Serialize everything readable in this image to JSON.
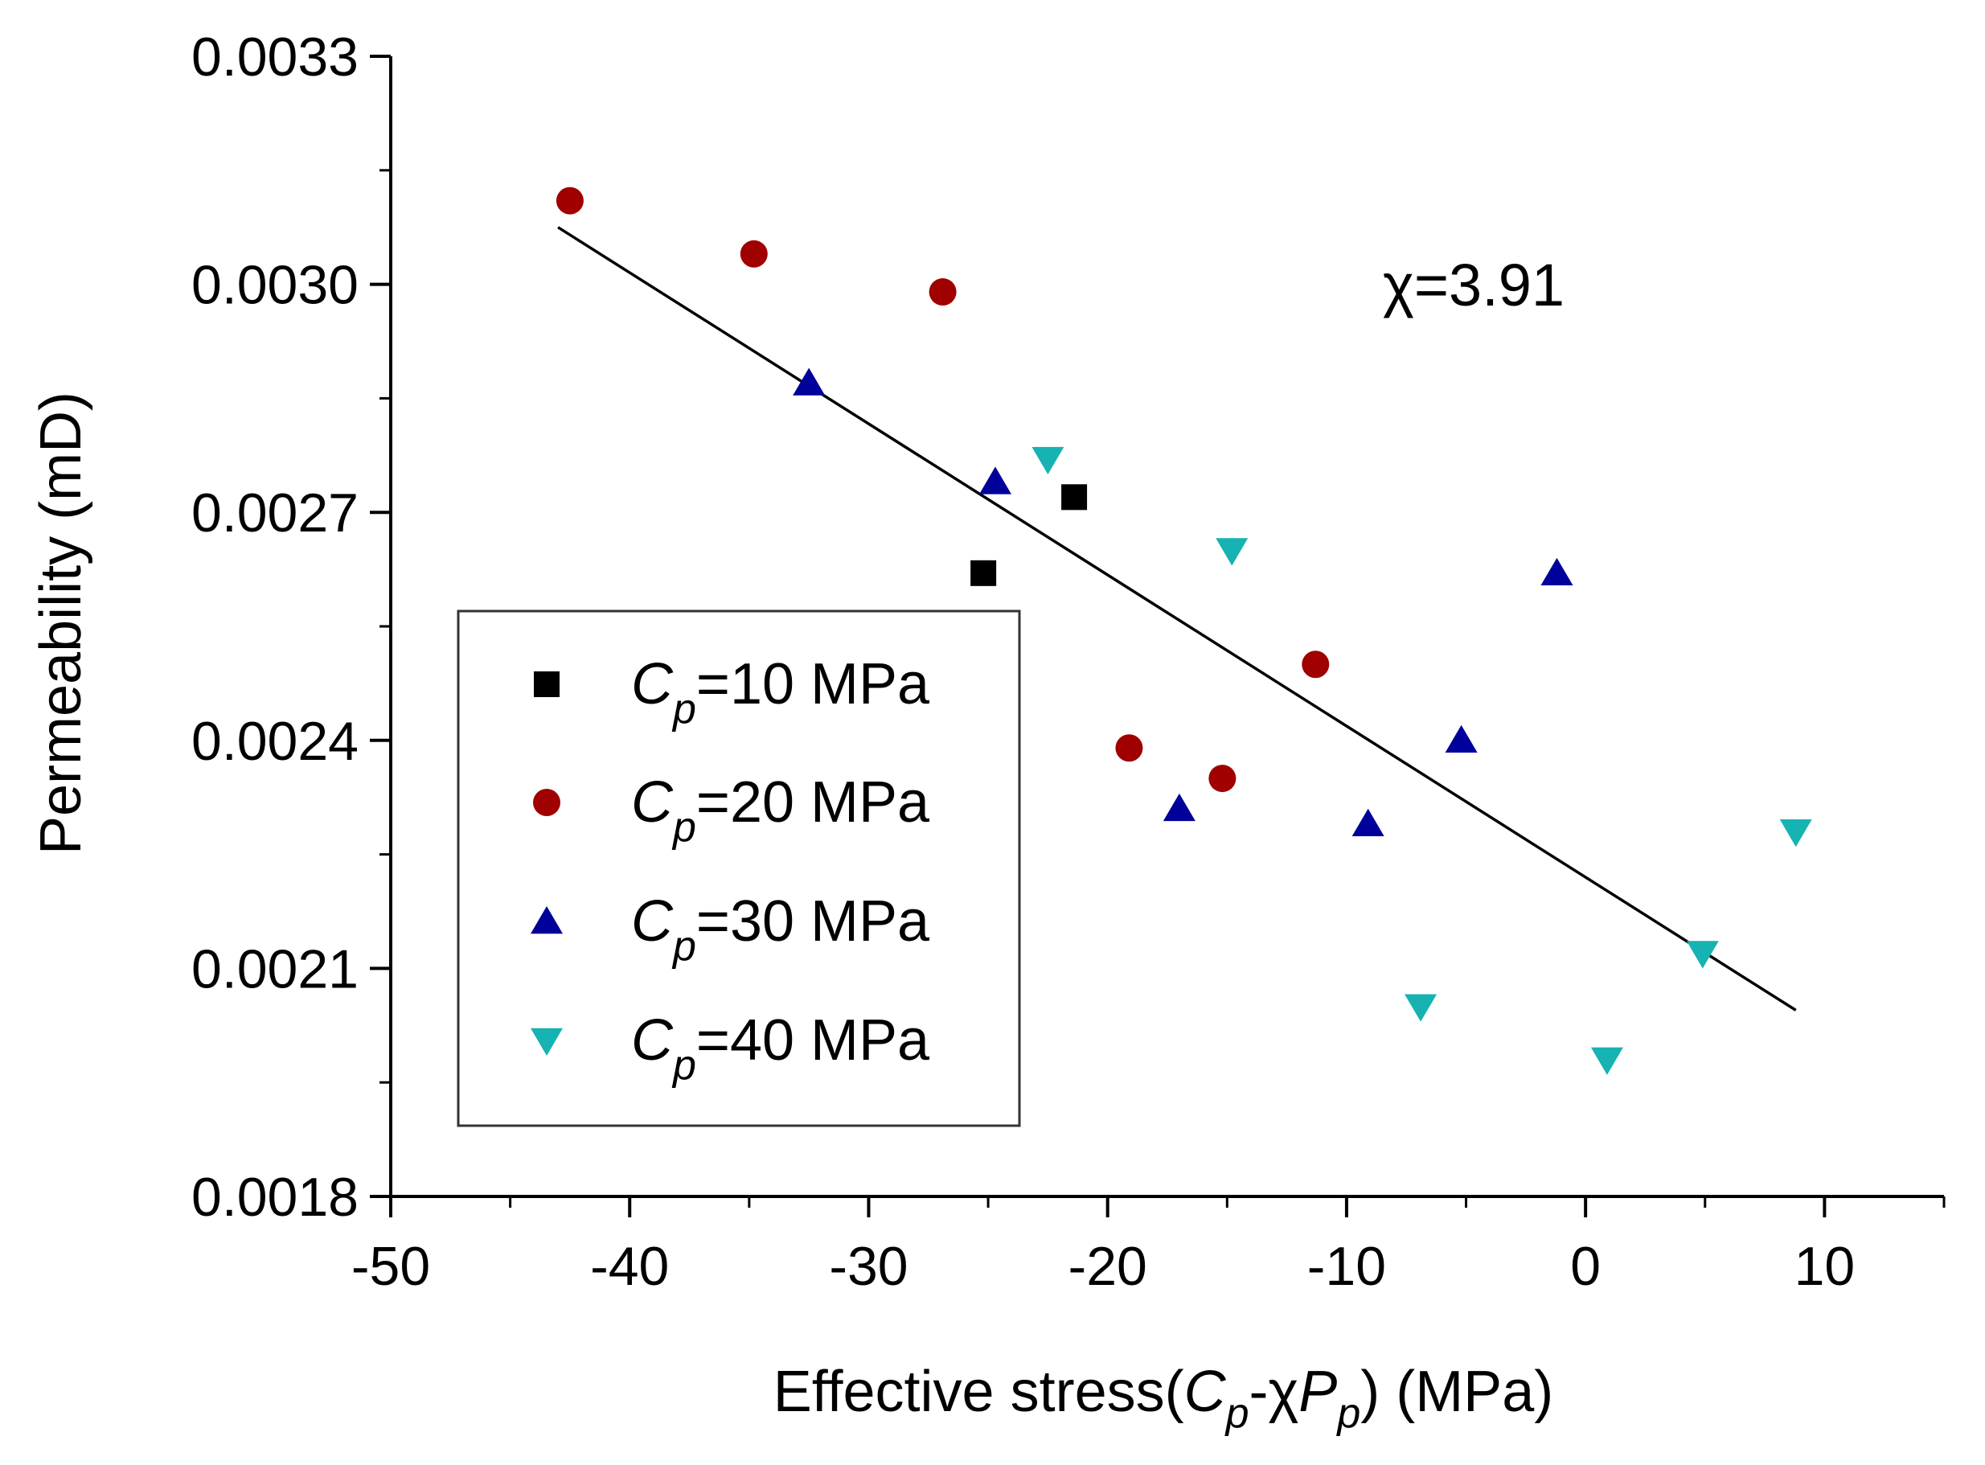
{
  "chart_data": {
    "type": "scatter",
    "title": "",
    "xlabel": {
      "prefix": "Effective stress(",
      "c_var": "C",
      "c_sub": "p",
      "dash": "-",
      "chi": "χ",
      "p_var": "P",
      "p_sub": "p",
      "suffix": ") (MPa)"
    },
    "ylabel": "Permeability (mD)",
    "xlim": [
      -50,
      15
    ],
    "ylim": [
      0.0018,
      0.0033
    ],
    "xticks": [
      -50,
      -40,
      -30,
      -20,
      -10,
      0,
      10
    ],
    "xtick_labels": [
      "-50",
      "-40",
      "-30",
      "-20",
      "-10",
      "0",
      "10"
    ],
    "yticks": [
      0.0018,
      0.0021,
      0.0024,
      0.0027,
      0.003,
      0.0033
    ],
    "ytick_labels": [
      "0.0018",
      "0.0021",
      "0.0024",
      "0.0027",
      "0.0030",
      "0.0033"
    ],
    "annotation": "χ=3.91",
    "legend_position": "lower-left",
    "series": [
      {
        "name": "Cp=10 MPa",
        "legend_var": "C",
        "legend_sub": "p",
        "legend_value": "=10 MPa",
        "marker": "square",
        "color": "#000000",
        "points": [
          [
            -25.2,
            0.00262
          ],
          [
            -21.4,
            0.00272
          ]
        ]
      },
      {
        "name": "Cp=20 MPa",
        "legend_var": "C",
        "legend_sub": "p",
        "legend_value": "=20 MPa",
        "marker": "circle",
        "color": "#a00000",
        "points": [
          [
            -42.5,
            0.00311
          ],
          [
            -34.8,
            0.00304
          ],
          [
            -26.9,
            0.00299
          ],
          [
            -19.1,
            0.00239
          ],
          [
            -15.2,
            0.00235
          ],
          [
            -11.3,
            0.0025
          ]
        ]
      },
      {
        "name": "Cp=30 MPa",
        "legend_var": "C",
        "legend_sub": "p",
        "legend_value": "=30 MPa",
        "marker": "triangle-up",
        "color": "#00009a",
        "points": [
          [
            -32.5,
            0.00287
          ],
          [
            -24.7,
            0.00274
          ],
          [
            -17.0,
            0.00231
          ],
          [
            -9.1,
            0.00229
          ],
          [
            -5.2,
            0.0024
          ],
          [
            -1.2,
            0.00262
          ]
        ]
      },
      {
        "name": "Cp=40 MPa",
        "legend_var": "C",
        "legend_sub": "p",
        "legend_value": "=40 MPa",
        "marker": "triangle-down",
        "color": "#17b2b2",
        "points": [
          [
            -22.5,
            0.00277
          ],
          [
            -14.8,
            0.00265
          ],
          [
            -6.9,
            0.00205
          ],
          [
            0.9,
            0.00198
          ],
          [
            4.9,
            0.00212
          ],
          [
            8.8,
            0.00228
          ]
        ]
      }
    ],
    "fit_line": {
      "color": "#000000",
      "points": [
        [
          -43.0,
          0.003075
        ],
        [
          8.8,
          0.002045
        ]
      ]
    }
  }
}
